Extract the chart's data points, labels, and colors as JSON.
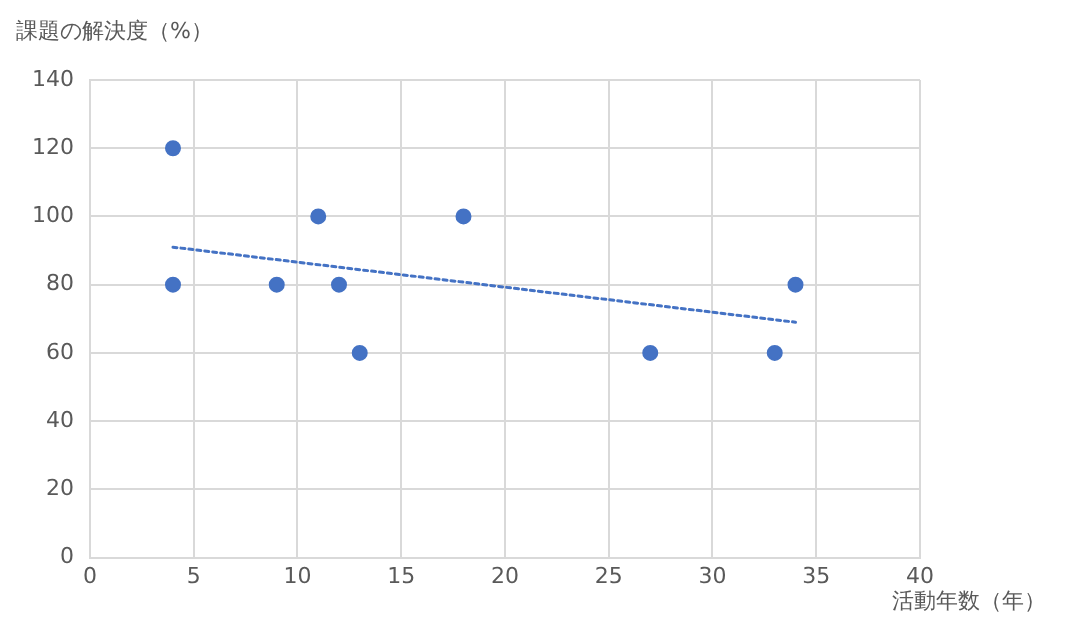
{
  "chart_data": {
    "type": "scatter",
    "xlabel": "活動年数（年）",
    "ylabel": "課題の解決度（%）",
    "x": [
      4,
      4,
      9,
      11,
      12,
      13,
      18,
      27,
      33,
      34
    ],
    "series": [
      {
        "color": "#4472c4",
        "values": [
          120,
          80,
          80,
          100,
          80,
          60,
          100,
          60,
          60,
          80
        ],
        "marker": "circle"
      },
      {
        "type": "line",
        "x": [
          4,
          34
        ],
        "values": [
          91,
          69
        ],
        "color": "#4472c4",
        "line_style": "dotted",
        "marker": "none"
      }
    ],
    "xlim": [
      0,
      40
    ],
    "xticks": [
      0,
      5,
      10,
      15,
      20,
      25,
      30,
      35,
      40
    ],
    "ylim": [
      0,
      140
    ],
    "yticks": [
      0,
      20,
      40,
      60,
      80,
      100,
      120,
      140
    ],
    "grid": true,
    "legend": false
  }
}
